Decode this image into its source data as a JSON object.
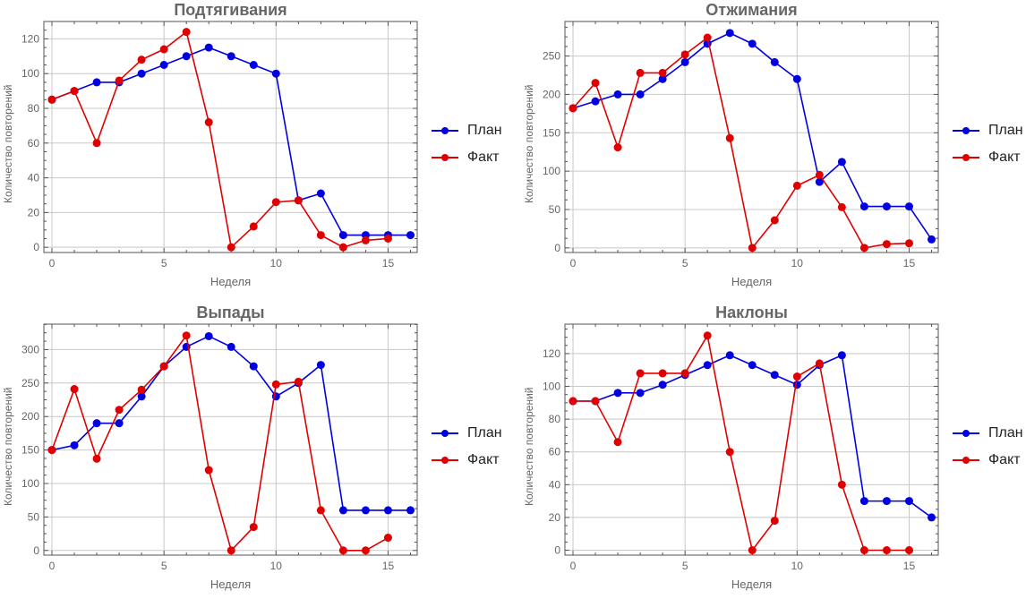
{
  "legend": {
    "plan": "План",
    "fact": "Факт"
  },
  "colors": {
    "plan": "#0000e0",
    "fact": "#e00000",
    "grid": "#c8c8c8",
    "frame": "#555555",
    "text": "#666666"
  },
  "chart_data": [
    {
      "type": "line",
      "title": "Подтягивания",
      "xlabel": "Неделя",
      "ylabel": "Количество повторений",
      "xlim": [
        -0.36,
        16.3
      ],
      "ylim": [
        -3,
        130
      ],
      "xticks": [
        0,
        5,
        10,
        15
      ],
      "yticks": [
        0,
        20,
        40,
        60,
        80,
        100,
        120
      ],
      "grid": true,
      "legend_position": "right",
      "series": [
        {
          "name": "План",
          "x": [
            0,
            1,
            2,
            3,
            4,
            5,
            6,
            7,
            8,
            9,
            10,
            11,
            12,
            13,
            14,
            15,
            16
          ],
          "values": [
            85,
            90,
            95,
            95,
            100,
            105,
            110,
            115,
            110,
            105,
            100,
            27,
            31,
            7,
            7,
            7,
            7
          ]
        },
        {
          "name": "Факт",
          "x": [
            0,
            1,
            2,
            3,
            4,
            5,
            6,
            7,
            8,
            9,
            10,
            11,
            12,
            13,
            14,
            15
          ],
          "values": [
            85,
            90,
            60,
            96,
            108,
            114,
            124,
            72,
            0,
            12,
            26,
            27,
            7,
            0,
            4,
            5
          ]
        }
      ]
    },
    {
      "type": "line",
      "title": "Отжимания",
      "xlabel": "Неделя",
      "ylabel": "Количество повторений",
      "xlim": [
        -0.36,
        16.3
      ],
      "ylim": [
        -6,
        295
      ],
      "xticks": [
        0,
        5,
        10,
        15
      ],
      "yticks": [
        0,
        50,
        100,
        150,
        200,
        250
      ],
      "grid": true,
      "legend_position": "right",
      "series": [
        {
          "name": "План",
          "x": [
            0,
            1,
            2,
            3,
            4,
            5,
            6,
            7,
            8,
            9,
            10,
            11,
            12,
            13,
            14,
            15,
            16
          ],
          "values": [
            182,
            191,
            200,
            200,
            220,
            242,
            266,
            280,
            266,
            242,
            220,
            86,
            112,
            54,
            54,
            54,
            11
          ]
        },
        {
          "name": "Факт",
          "x": [
            0,
            1,
            2,
            3,
            4,
            5,
            6,
            7,
            8,
            9,
            10,
            11,
            12,
            13,
            14,
            15
          ],
          "values": [
            182,
            215,
            131,
            228,
            228,
            252,
            274,
            143,
            0,
            36,
            81,
            95,
            53,
            0,
            5,
            6
          ]
        }
      ]
    },
    {
      "type": "line",
      "title": "Выпады",
      "xlabel": "Неделя",
      "ylabel": "Количество повторений",
      "xlim": [
        -0.36,
        16.3
      ],
      "ylim": [
        -7,
        338
      ],
      "xticks": [
        0,
        5,
        10,
        15
      ],
      "yticks": [
        0,
        50,
        100,
        150,
        200,
        250,
        300
      ],
      "grid": true,
      "legend_position": "right",
      "series": [
        {
          "name": "План",
          "x": [
            0,
            1,
            2,
            3,
            4,
            5,
            6,
            7,
            8,
            9,
            10,
            11,
            12,
            13,
            14,
            15,
            16
          ],
          "values": [
            150,
            157,
            190,
            190,
            230,
            275,
            304,
            320,
            304,
            275,
            230,
            250,
            277,
            60,
            60,
            60,
            60
          ]
        },
        {
          "name": "Факт",
          "x": [
            0,
            1,
            2,
            3,
            4,
            5,
            6,
            7,
            8,
            9,
            10,
            11,
            12,
            13,
            14,
            15
          ],
          "values": [
            150,
            241,
            137,
            210,
            240,
            275,
            321,
            120,
            0,
            35,
            248,
            252,
            60,
            0,
            0,
            19
          ]
        }
      ]
    },
    {
      "type": "line",
      "title": "Наклоны",
      "xlabel": "Неделя",
      "ylabel": "Количество повторений",
      "xlim": [
        -0.36,
        16.3
      ],
      "ylim": [
        -3,
        138
      ],
      "xticks": [
        0,
        5,
        10,
        15
      ],
      "yticks": [
        0,
        20,
        40,
        60,
        80,
        100,
        120
      ],
      "grid": true,
      "legend_position": "right",
      "series": [
        {
          "name": "План",
          "x": [
            0,
            1,
            2,
            3,
            4,
            5,
            6,
            7,
            8,
            9,
            10,
            11,
            12,
            13,
            14,
            15,
            16
          ],
          "values": [
            91,
            91,
            96,
            96,
            101,
            107,
            113,
            119,
            113,
            107,
            101,
            113,
            119,
            30,
            30,
            30,
            20
          ]
        },
        {
          "name": "Факт",
          "x": [
            0,
            1,
            2,
            3,
            4,
            5,
            6,
            7,
            8,
            9,
            10,
            11,
            12,
            13,
            14,
            15
          ],
          "values": [
            91,
            91,
            66,
            108,
            108,
            108,
            131,
            60,
            0,
            18,
            106,
            114,
            40,
            0,
            0,
            0
          ]
        }
      ]
    }
  ]
}
